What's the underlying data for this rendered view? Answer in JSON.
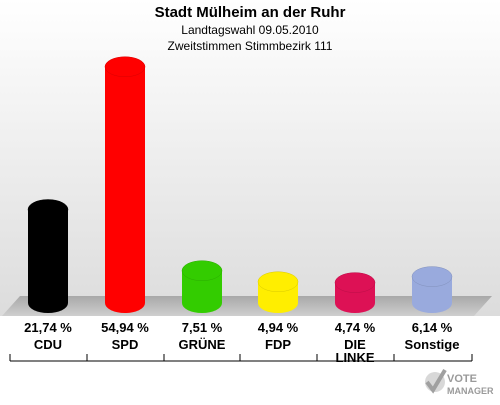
{
  "chart_data": {
    "type": "bar",
    "title": "Stadt Mülheim an der Ruhr",
    "subtitle_1": "Landtagswahl 09.05.2010",
    "subtitle_2": "Zweitstimmen Stimmbezirk 111",
    "categories": [
      "CDU",
      "SPD",
      "GRÜNE",
      "FDP",
      "DIE LINKE",
      "Sonstige"
    ],
    "values": [
      21.74,
      54.94,
      7.51,
      4.94,
      4.74,
      6.14
    ],
    "value_labels": [
      "21,74 %",
      "54,94 %",
      "7,51 %",
      "4,94 %",
      "4,74 %",
      "6,14 %"
    ],
    "colors": [
      "#000000",
      "#ff0000",
      "#33cc00",
      "#ffee00",
      "#dd1155",
      "#99aadd"
    ],
    "ylim": [
      0,
      60
    ],
    "grid": false
  },
  "logo": {
    "line1": "VOTE",
    "line2": "MANAGER"
  }
}
